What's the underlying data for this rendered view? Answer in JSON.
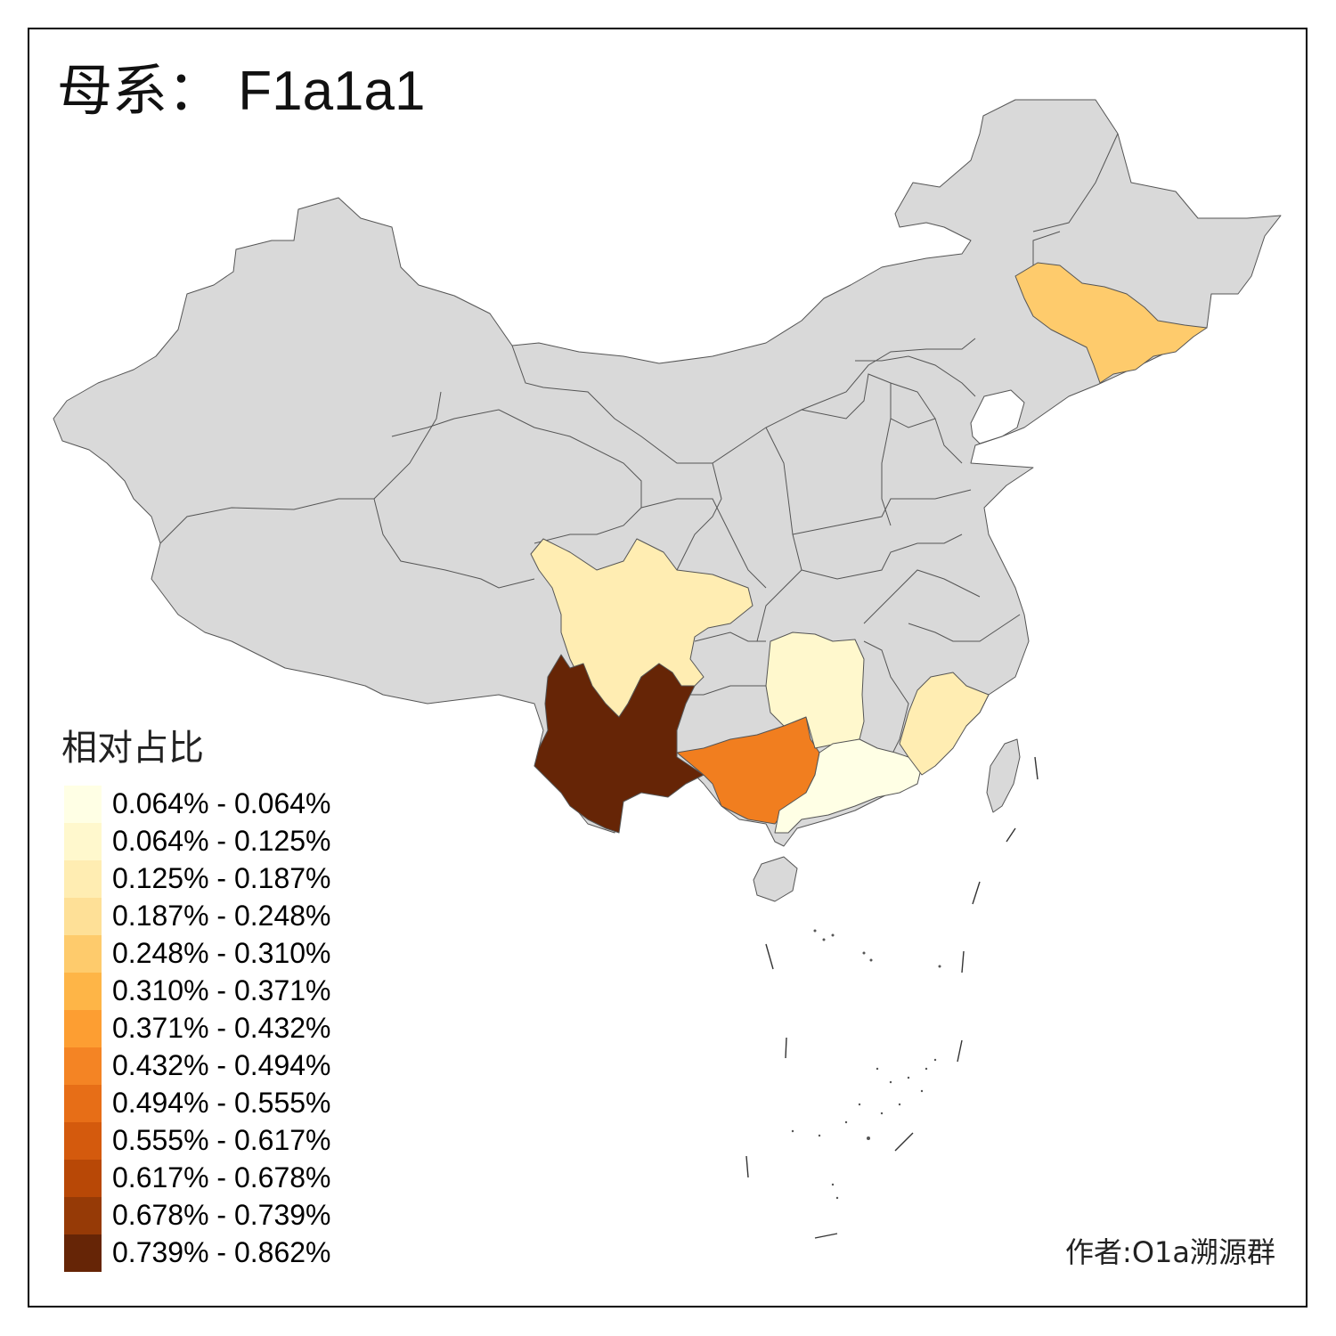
{
  "title": "母系： F1a1a1",
  "legend": {
    "title": "相对占比",
    "items": [
      {
        "label": "0.064% - 0.064%",
        "color": "#FFFFE5"
      },
      {
        "label": "0.064% - 0.125%",
        "color": "#FFF8CD"
      },
      {
        "label": "0.125% - 0.187%",
        "color": "#FFEDB2"
      },
      {
        "label": "0.187% - 0.248%",
        "color": "#FEE097"
      },
      {
        "label": "0.248% - 0.310%",
        "color": "#FECB6C"
      },
      {
        "label": "0.310% - 0.371%",
        "color": "#FEB547"
      },
      {
        "label": "0.371% - 0.432%",
        "color": "#FD9E32"
      },
      {
        "label": "0.432% - 0.494%",
        "color": "#F48424"
      },
      {
        "label": "0.494% - 0.555%",
        "color": "#E76E17"
      },
      {
        "label": "0.555% - 0.617%",
        "color": "#D45A0D"
      },
      {
        "label": "0.617% - 0.678%",
        "color": "#B84806"
      },
      {
        "label": "0.678% - 0.739%",
        "color": "#963A06"
      },
      {
        "label": "0.739% - 0.862%",
        "color": "#662506"
      }
    ]
  },
  "map": {
    "no_data_color": "#D9D9D9",
    "highlighted_regions": [
      {
        "region": "Yunnan",
        "color": "#662506"
      },
      {
        "region": "Guangxi",
        "color": "#F17E1F"
      },
      {
        "region": "Jilin",
        "color": "#FECB6C"
      },
      {
        "region": "Sichuan",
        "color": "#FFEDB2"
      },
      {
        "region": "Fujian",
        "color": "#FFEDB2"
      },
      {
        "region": "Hunan",
        "color": "#FFF8CD"
      },
      {
        "region": "Guangdong",
        "color": "#FFFFE5"
      }
    ]
  },
  "author": "作者:O1a溯源群"
}
